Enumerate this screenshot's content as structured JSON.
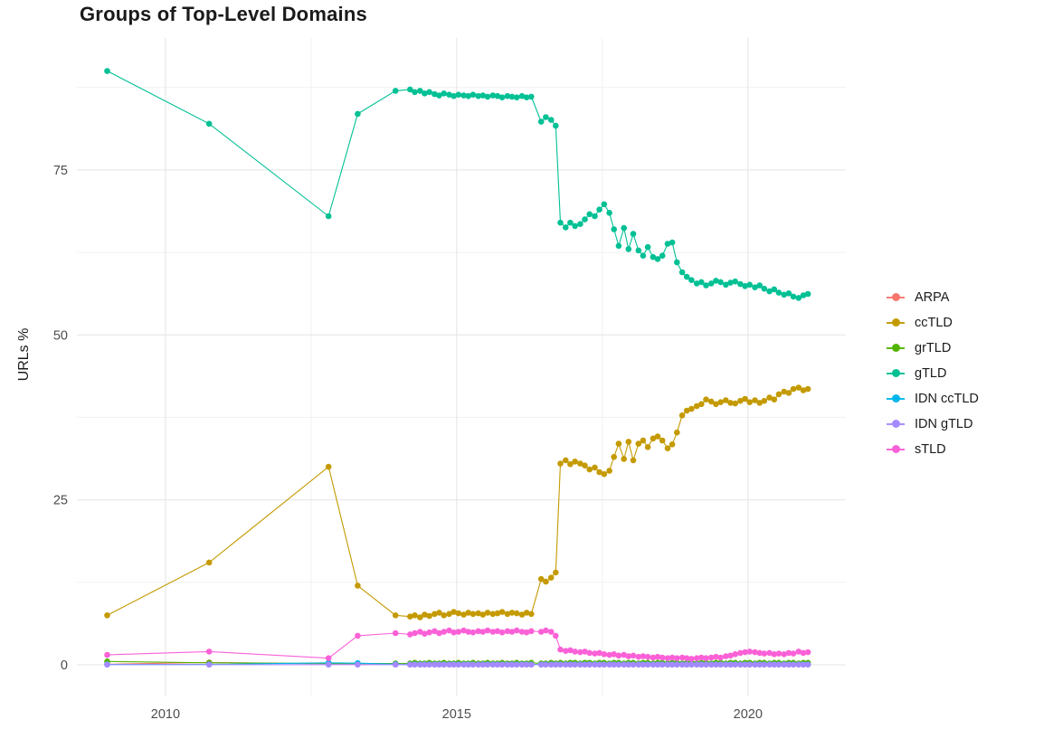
{
  "chart_data": {
    "type": "line",
    "title": "Groups of Top-Level Domains",
    "xlabel": "",
    "ylabel": "URLs %",
    "legend_position": "right",
    "grid": true,
    "xlim": [
      2008.48,
      2021.68
    ],
    "ylim": [
      -4.8,
      95
    ],
    "x_ticks": [
      2010,
      2015,
      2020
    ],
    "y_ticks": [
      0,
      25,
      50,
      75
    ],
    "x_minor": [
      2012.5,
      2017.5
    ],
    "y_minor": [
      12.5,
      37.5,
      62.5,
      87.5
    ],
    "x": [
      2009.0,
      2010.75,
      2012.8,
      2013.3,
      2013.95,
      2014.2,
      2014.28,
      2014.37,
      2014.45,
      2014.53,
      2014.62,
      2014.7,
      2014.78,
      2014.87,
      2014.95,
      2015.03,
      2015.12,
      2015.2,
      2015.28,
      2015.37,
      2015.45,
      2015.53,
      2015.62,
      2015.7,
      2015.78,
      2015.87,
      2015.95,
      2016.03,
      2016.12,
      2016.2,
      2016.28,
      2016.45,
      2016.53,
      2016.62,
      2016.7,
      2016.78,
      2016.87,
      2016.95,
      2017.03,
      2017.12,
      2017.2,
      2017.28,
      2017.37,
      2017.45,
      2017.53,
      2017.62,
      2017.7,
      2017.78,
      2017.87,
      2017.95,
      2018.03,
      2018.12,
      2018.2,
      2018.28,
      2018.37,
      2018.45,
      2018.53,
      2018.62,
      2018.7,
      2018.78,
      2018.87,
      2018.95,
      2019.03,
      2019.12,
      2019.2,
      2019.28,
      2019.37,
      2019.45,
      2019.53,
      2019.62,
      2019.7,
      2019.78,
      2019.87,
      2019.95,
      2020.03,
      2020.12,
      2020.2,
      2020.28,
      2020.37,
      2020.45,
      2020.53,
      2020.62,
      2020.7,
      2020.78,
      2020.87,
      2020.95,
      2021.03
    ],
    "series": [
      {
        "name": "ARPA",
        "color": "#F8766D",
        "values": [
          0.1,
          0.35,
          0.15,
          0.1,
          0.05,
          0.05,
          0.05,
          0.05,
          0.05,
          0.05,
          0.05,
          0.05,
          0.05,
          0.05,
          0.05,
          0.05,
          0.05,
          0.05,
          0.05,
          0.05,
          0.05,
          0.05,
          0.05,
          0.05,
          0.05,
          0.05,
          0.05,
          0.05,
          0.05,
          0.05,
          0.05,
          0.05,
          0.05,
          0.05,
          0.05,
          0.05,
          0.05,
          0.05,
          0.05,
          0.05,
          0.05,
          0.05,
          0.05,
          0.05,
          0.05,
          0.05,
          0.05,
          0.05,
          0.05,
          0.05,
          0.05,
          0.05,
          0.05,
          0.05,
          0.05,
          0.05,
          0.05,
          0.05,
          0.05,
          0.05,
          0.05,
          0.05,
          0.05,
          0.05,
          0.05,
          0.05,
          0.05,
          0.05,
          0.05,
          0.05,
          0.05,
          0.05,
          0.05,
          0.05,
          0.05,
          0.05,
          0.05,
          0.05,
          0.05,
          0.05,
          0.05,
          0.05,
          0.05,
          0.05,
          0.05,
          0.05,
          0.05
        ]
      },
      {
        "name": "ccTLD",
        "color": "#C49A00",
        "values": [
          7.5,
          15.5,
          30,
          12,
          7.5,
          7.3,
          7.5,
          7.2,
          7.6,
          7.4,
          7.7,
          7.9,
          7.5,
          7.7,
          8,
          7.8,
          7.6,
          7.9,
          7.7,
          7.8,
          7.6,
          7.9,
          7.7,
          7.8,
          8,
          7.7,
          7.9,
          7.8,
          7.6,
          7.9,
          7.7,
          13,
          12.6,
          13.2,
          14,
          30.5,
          31,
          30.4,
          30.8,
          30.5,
          30.2,
          29.6,
          29.9,
          29.2,
          28.9,
          29.4,
          31.5,
          33.5,
          31.2,
          33.8,
          31,
          33.5,
          34,
          33,
          34.3,
          34.6,
          34,
          32.8,
          33.4,
          35.2,
          37.8,
          38.5,
          38.8,
          39.2,
          39.5,
          40.2,
          39.9,
          39.5,
          39.8,
          40.1,
          39.7,
          39.6,
          40,
          40.3,
          39.8,
          40.1,
          39.7,
          40,
          40.5,
          40.2,
          41,
          41.4,
          41.2,
          41.8,
          42,
          41.6,
          41.8
        ]
      },
      {
        "name": "grTLD",
        "color": "#53B400",
        "values": [
          0.5,
          0.3,
          0.2,
          0.2,
          0.2,
          0.2,
          0.3,
          0.2,
          0.2,
          0.3,
          0.2,
          0.2,
          0.3,
          0.2,
          0.2,
          0.3,
          0.2,
          0.2,
          0.3,
          0.2,
          0.2,
          0.3,
          0.2,
          0.2,
          0.3,
          0.2,
          0.2,
          0.3,
          0.2,
          0.2,
          0.3,
          0.2,
          0.2,
          0.3,
          0.2,
          0.3,
          0.2,
          0.3,
          0.3,
          0.2,
          0.3,
          0.3,
          0.2,
          0.3,
          0.3,
          0.2,
          0.3,
          0.3,
          0.2,
          0.3,
          0.3,
          0.2,
          0.3,
          0.3,
          0.2,
          0.3,
          0.3,
          0.2,
          0.3,
          0.3,
          0.2,
          0.3,
          0.3,
          0.2,
          0.3,
          0.3,
          0.2,
          0.3,
          0.3,
          0.2,
          0.3,
          0.3,
          0.2,
          0.3,
          0.3,
          0.2,
          0.3,
          0.3,
          0.2,
          0.3,
          0.3,
          0.2,
          0.3,
          0.3,
          0.2,
          0.3,
          0.3
        ]
      },
      {
        "name": "gTLD",
        "color": "#00C094",
        "values": [
          90,
          82,
          68,
          83.5,
          87,
          87.2,
          86.8,
          87,
          86.6,
          86.8,
          86.5,
          86.3,
          86.6,
          86.4,
          86.2,
          86.4,
          86.3,
          86.2,
          86.4,
          86.2,
          86.3,
          86.1,
          86.3,
          86.2,
          86,
          86.2,
          86.1,
          86,
          86.2,
          86,
          86.1,
          82.3,
          83,
          82.6,
          81.7,
          67,
          66.3,
          67,
          66.5,
          66.8,
          67.5,
          68.3,
          68,
          69,
          69.8,
          68.5,
          66,
          63.5,
          66.2,
          63,
          65.3,
          62.8,
          62,
          63.3,
          61.8,
          61.5,
          62,
          63.8,
          64,
          61,
          59.5,
          58.8,
          58.3,
          57.8,
          58,
          57.5,
          57.8,
          58.2,
          58,
          57.6,
          57.9,
          58.1,
          57.7,
          57.4,
          57.6,
          57.2,
          57.5,
          57,
          56.6,
          56.9,
          56.4,
          56.1,
          56.3,
          55.8,
          55.6,
          56,
          56.2
        ]
      },
      {
        "name": "IDN ccTLD",
        "color": "#00B6EB",
        "values": [
          0.05,
          0.05,
          0.3,
          0.25,
          0.1,
          0.05,
          0.05,
          0.05,
          0.05,
          0.05,
          0.05,
          0.05,
          0.05,
          0.05,
          0.05,
          0.05,
          0.05,
          0.05,
          0.05,
          0.05,
          0.05,
          0.05,
          0.05,
          0.05,
          0.05,
          0.05,
          0.05,
          0.05,
          0.05,
          0.05,
          0.05,
          0.05,
          0.05,
          0.05,
          0.05,
          0.05,
          0.05,
          0.05,
          0.05,
          0.05,
          0.05,
          0.05,
          0.05,
          0.05,
          0.05,
          0.05,
          0.05,
          0.05,
          0.05,
          0.05,
          0.05,
          0.05,
          0.05,
          0.05,
          0.05,
          0.05,
          0.05,
          0.05,
          0.05,
          0.05,
          0.05,
          0.05,
          0.05,
          0.05,
          0.05,
          0.05,
          0.05,
          0.05,
          0.05,
          0.05,
          0.05,
          0.05,
          0.05,
          0.05,
          0.05,
          0.05,
          0.05,
          0.05,
          0.05,
          0.05,
          0.05,
          0.05,
          0.05,
          0.05,
          0.05,
          0.05,
          0.05
        ]
      },
      {
        "name": "IDN gTLD",
        "color": "#A58AFF",
        "values": [
          0.02,
          0.02,
          0.02,
          0.02,
          0.02,
          0.02,
          0.02,
          0.02,
          0.02,
          0.02,
          0.02,
          0.02,
          0.02,
          0.02,
          0.02,
          0.02,
          0.02,
          0.02,
          0.02,
          0.02,
          0.02,
          0.02,
          0.02,
          0.02,
          0.02,
          0.02,
          0.02,
          0.02,
          0.02,
          0.02,
          0.02,
          0.02,
          0.02,
          0.02,
          0.02,
          0.02,
          0.02,
          0.02,
          0.02,
          0.02,
          0.02,
          0.02,
          0.02,
          0.02,
          0.02,
          0.02,
          0.02,
          0.02,
          0.02,
          0.02,
          0.02,
          0.02,
          0.02,
          0.02,
          0.02,
          0.02,
          0.02,
          0.02,
          0.02,
          0.02,
          0.02,
          0.02,
          0.02,
          0.02,
          0.02,
          0.02,
          0.02,
          0.02,
          0.02,
          0.02,
          0.02,
          0.02,
          0.02,
          0.02,
          0.02,
          0.02,
          0.02,
          0.02,
          0.02,
          0.02,
          0.02,
          0.02,
          0.02,
          0.02,
          0.02,
          0.02,
          0.02
        ]
      },
      {
        "name": "sTLD",
        "color": "#FB61D7",
        "values": [
          1.5,
          2,
          1,
          4.4,
          4.8,
          4.6,
          4.8,
          5,
          4.7,
          4.9,
          5.1,
          4.8,
          5,
          5.2,
          4.9,
          5,
          5.2,
          5,
          4.9,
          5.1,
          5,
          5.2,
          5,
          5.1,
          4.9,
          5.1,
          5,
          5.2,
          5,
          4.9,
          5.1,
          5,
          5.2,
          5,
          4.4,
          2.3,
          2.1,
          2.2,
          2,
          1.9,
          2,
          1.8,
          1.7,
          1.8,
          1.6,
          1.5,
          1.6,
          1.4,
          1.5,
          1.3,
          1.4,
          1.2,
          1.3,
          1.2,
          1.1,
          1.2,
          1.1,
          1,
          1.1,
          1,
          1.1,
          1,
          0.9,
          1,
          1.1,
          1,
          1.1,
          1.2,
          1.1,
          1.3,
          1.4,
          1.6,
          1.8,
          1.9,
          2,
          1.9,
          1.8,
          1.7,
          1.8,
          1.6,
          1.7,
          1.6,
          1.8,
          1.7,
          2,
          1.8,
          1.9
        ]
      }
    ]
  }
}
